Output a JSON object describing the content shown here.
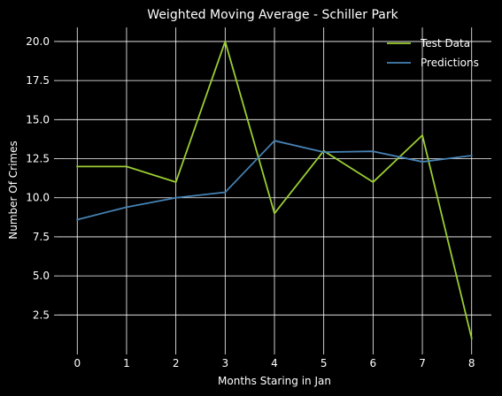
{
  "chart_data": {
    "type": "line",
    "title": "Weighted Moving Average - Schiller Park",
    "xlabel": "Months Staring in Jan",
    "ylabel": "Number Of Crimes",
    "x": [
      0,
      1,
      2,
      3,
      4,
      5,
      6,
      7,
      8
    ],
    "xlim": [
      -0.4,
      8.4
    ],
    "ylim": [
      0.2,
      20.9
    ],
    "xticks": [
      "0",
      "1",
      "2",
      "3",
      "4",
      "5",
      "6",
      "7",
      "8"
    ],
    "yticks": [
      "2.5",
      "5.0",
      "7.5",
      "10.0",
      "12.5",
      "15.0",
      "17.5",
      "20.0"
    ],
    "grid": true,
    "legend_position": "top-right",
    "series": [
      {
        "name": "Test Data",
        "color": "#9acd32",
        "values": [
          12,
          12,
          11,
          20,
          9,
          13,
          11,
          14,
          1
        ]
      },
      {
        "name": "Predictions",
        "color": "#4682b4",
        "values": [
          8.6,
          9.4,
          10.0,
          10.35,
          13.65,
          12.92,
          12.97,
          12.3,
          12.7
        ]
      }
    ]
  }
}
